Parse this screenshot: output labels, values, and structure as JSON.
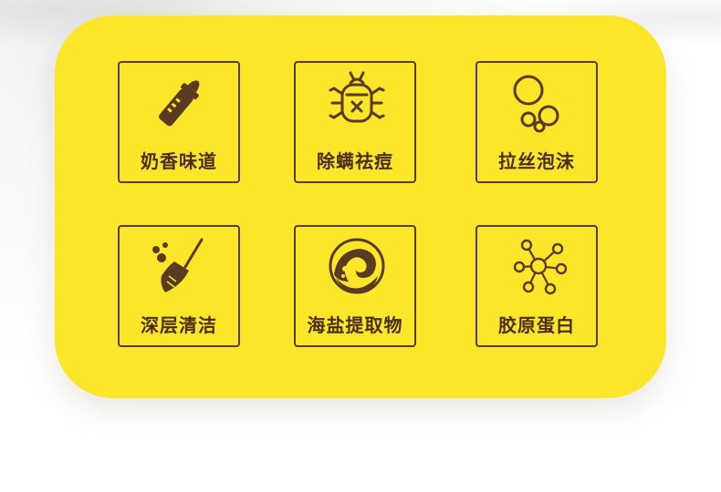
{
  "features": [
    {
      "label": "奶香味道",
      "icon": "baby-bottle-icon"
    },
    {
      "label": "除螨祛痘",
      "icon": "mite-crossed-icon"
    },
    {
      "label": "拉丝泡沫",
      "icon": "foam-bubbles-icon"
    },
    {
      "label": "深层清洁",
      "icon": "broom-icon"
    },
    {
      "label": "海盐提取物",
      "icon": "sea-salt-wave-icon"
    },
    {
      "label": "胶原蛋白",
      "icon": "collagen-molecule-icon"
    }
  ],
  "colors": {
    "panel": "#fbe629",
    "ink": "#5b3a22",
    "label": "#4a2e1a"
  }
}
